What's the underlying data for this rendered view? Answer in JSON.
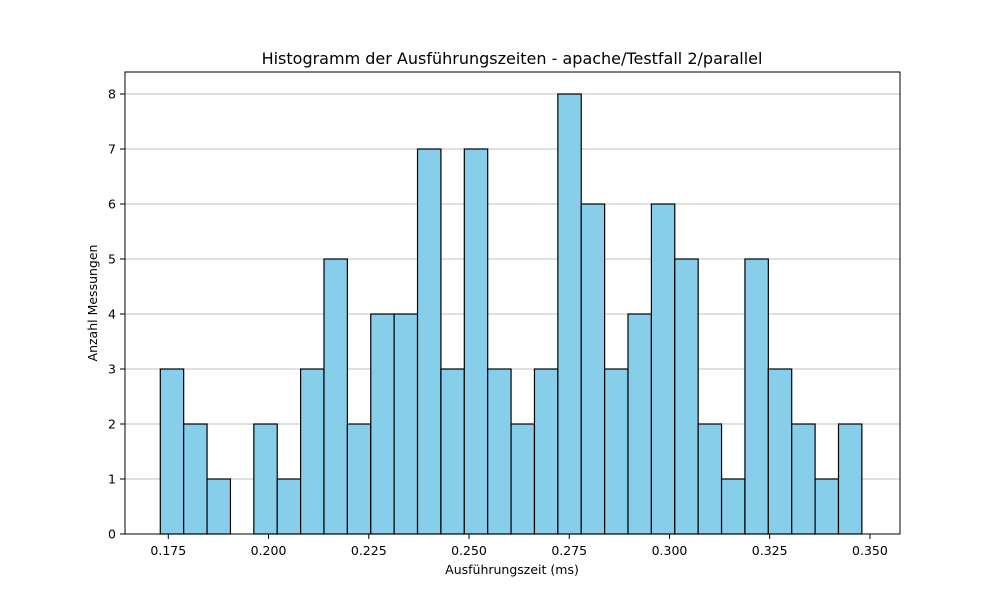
{
  "chart_data": {
    "type": "bar",
    "title": "Histogramm der Ausführungszeiten - apache/Testfall 2/parallel",
    "xlabel": "Ausführungszeit (ms)",
    "ylabel": "Anzahl Messungen",
    "xlim": [
      0.1642,
      0.3575
    ],
    "ylim": [
      0,
      8.4
    ],
    "grid": "y",
    "bin_start": 0.173,
    "bin_width": 0.005833,
    "values": [
      3,
      2,
      1,
      0,
      2,
      1,
      3,
      5,
      2,
      4,
      4,
      7,
      3,
      7,
      3,
      2,
      3,
      8,
      6,
      3,
      4,
      6,
      5,
      2,
      1,
      5,
      3,
      2,
      1,
      2
    ],
    "x_ticks": [
      0.175,
      0.2,
      0.225,
      0.25,
      0.275,
      0.3,
      0.325,
      0.35
    ],
    "x_tick_labels": [
      "0.175",
      "0.200",
      "0.225",
      "0.250",
      "0.275",
      "0.300",
      "0.325",
      "0.350"
    ],
    "y_ticks": [
      0,
      1,
      2,
      3,
      4,
      5,
      6,
      7,
      8
    ],
    "y_tick_labels": [
      "0",
      "1",
      "2",
      "3",
      "4",
      "5",
      "6",
      "7",
      "8"
    ],
    "colors": {
      "bar_fill": "#87ceeb",
      "bar_edge": "#000000",
      "grid": "#c0c0c0"
    }
  }
}
